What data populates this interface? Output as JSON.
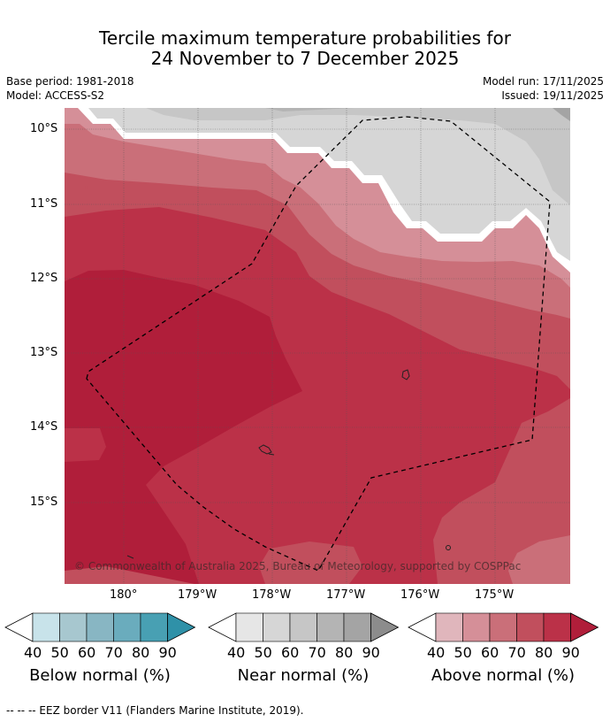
{
  "title": {
    "line1": "Tercile maximum temperature probabilities for",
    "line2": "24 November to 7 December 2025"
  },
  "meta": {
    "base_period": "Base period: 1981-2018",
    "model": "Model: ACCESS-S2",
    "model_run": "Model run: 17/11/2025",
    "issued": "Issued: 19/11/2025"
  },
  "map": {
    "lat_labels": [
      "10°S",
      "11°S",
      "12°S",
      "13°S",
      "14°S",
      "15°S"
    ],
    "lon_labels": [
      "180°",
      "179°W",
      "178°W",
      "177°W",
      "176°W",
      "175°W"
    ],
    "attribution": "© Commonwealth of Australia 2025, Bureau of Meteorology, supported by COSPPac",
    "colors": {
      "near": [
        "#e6e6e6",
        "#d6d6d6",
        "#c6c6c6",
        "#b4b4b4",
        "#a4a4a4",
        "#8c8c8c"
      ],
      "above": [
        "#e0b6bc",
        "#d58f98",
        "#ca6f79",
        "#c14f5d",
        "#bb3148",
        "#b01e3a"
      ],
      "below": [
        "#c8e3ea",
        "#a7c7cf",
        "#88b6c3",
        "#6aacbd",
        "#48a0b3",
        "#2f91a8"
      ]
    }
  },
  "colorbars": [
    {
      "name": "below",
      "label": "Below normal (%)",
      "ticks": [
        "40",
        "50",
        "60",
        "70",
        "80",
        "90"
      ]
    },
    {
      "name": "near",
      "label": "Near normal (%)",
      "ticks": [
        "40",
        "50",
        "60",
        "70",
        "80",
        "90"
      ]
    },
    {
      "name": "above",
      "label": "Above normal (%)",
      "ticks": [
        "40",
        "50",
        "60",
        "70",
        "80",
        "90"
      ]
    }
  ],
  "footer": "--  --  -- EEZ border V11 (Flanders Marine Institute, 2019)."
}
